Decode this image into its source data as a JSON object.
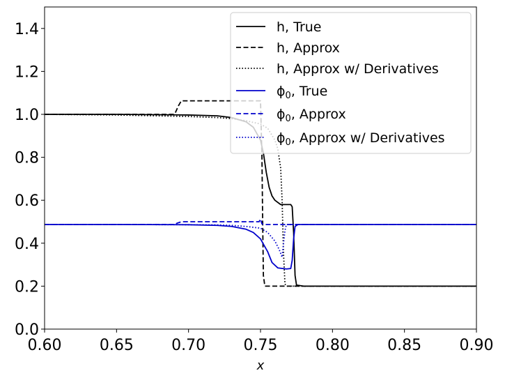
{
  "chart_data": {
    "type": "line",
    "title": "",
    "xlabel": "x",
    "ylabel": "",
    "xlim": [
      0.6,
      0.9
    ],
    "ylim": [
      0.0,
      1.5
    ],
    "xticks": [
      0.6,
      0.65,
      0.7,
      0.75,
      0.8,
      0.85,
      0.9
    ],
    "xtick_labels": [
      "0.60",
      "0.65",
      "0.70",
      "0.75",
      "0.80",
      "0.85",
      "0.90"
    ],
    "yticks": [
      0.0,
      0.2,
      0.4,
      0.6,
      0.8,
      1.0,
      1.2,
      1.4
    ],
    "ytick_labels": [
      "0.0",
      "0.2",
      "0.4",
      "0.6",
      "0.8",
      "1.0",
      "1.2",
      "1.4"
    ],
    "grid": false,
    "legend_position": "top-right",
    "series": [
      {
        "name": "h, True",
        "label_main": "h",
        "label_sub": "",
        "label_rest": ", True",
        "color": "#000000",
        "dash": "solid",
        "x": [
          0.6,
          0.65,
          0.7,
          0.72,
          0.73,
          0.74,
          0.745,
          0.75,
          0.752,
          0.754,
          0.756,
          0.758,
          0.76,
          0.764,
          0.768,
          0.771,
          0.772,
          0.773,
          0.774,
          0.775,
          0.78,
          0.85,
          0.9
        ],
        "y": [
          1.0,
          1.0,
          0.997,
          0.993,
          0.985,
          0.965,
          0.94,
          0.88,
          0.82,
          0.73,
          0.66,
          0.62,
          0.6,
          0.58,
          0.58,
          0.58,
          0.57,
          0.45,
          0.25,
          0.205,
          0.2,
          0.2,
          0.2
        ]
      },
      {
        "name": "h, Approx",
        "label_main": "h",
        "label_sub": "",
        "label_rest": ", Approx",
        "color": "#000000",
        "dash": "dashed",
        "x": [
          0.6,
          0.69,
          0.691,
          0.693,
          0.695,
          0.7,
          0.75,
          0.751,
          0.7515,
          0.752,
          0.753,
          0.8,
          0.9
        ],
        "y": [
          1.0,
          1.0,
          1.01,
          1.04,
          1.063,
          1.063,
          1.063,
          0.8,
          0.5,
          0.25,
          0.2,
          0.2,
          0.2
        ]
      },
      {
        "name": "h, Approx w/ Derivatives",
        "label_main": "h",
        "label_sub": "",
        "label_rest": ", Approx w/ Derivatives",
        "color": "#000000",
        "dash": "dotted",
        "x": [
          0.6,
          0.65,
          0.7,
          0.72,
          0.73,
          0.74,
          0.75,
          0.755,
          0.76,
          0.762,
          0.764,
          0.765,
          0.766,
          0.767,
          0.768,
          0.8,
          0.9
        ],
        "y": [
          1.0,
          0.997,
          0.99,
          0.985,
          0.98,
          0.97,
          0.955,
          0.935,
          0.88,
          0.84,
          0.75,
          0.6,
          0.35,
          0.21,
          0.2,
          0.2,
          0.2
        ]
      },
      {
        "name": "ϕ0, True",
        "label_main": "ϕ",
        "label_sub": "0",
        "label_rest": ", True",
        "color": "#0000cc",
        "dash": "solid",
        "x": [
          0.6,
          0.65,
          0.7,
          0.72,
          0.73,
          0.74,
          0.745,
          0.75,
          0.755,
          0.758,
          0.762,
          0.768,
          0.771,
          0.772,
          0.773,
          0.774,
          0.776,
          0.8,
          0.9
        ],
        "y": [
          0.487,
          0.487,
          0.486,
          0.483,
          0.478,
          0.465,
          0.45,
          0.42,
          0.36,
          0.31,
          0.285,
          0.28,
          0.282,
          0.32,
          0.42,
          0.478,
          0.487,
          0.487,
          0.487
        ]
      },
      {
        "name": "ϕ0, Approx",
        "label_main": "ϕ",
        "label_sub": "0",
        "label_rest": ", Approx",
        "color": "#0000cc",
        "dash": "dashed",
        "x": [
          0.6,
          0.69,
          0.692,
          0.695,
          0.7,
          0.749,
          0.75,
          0.751,
          0.753,
          0.8,
          0.9
        ],
        "y": [
          0.487,
          0.487,
          0.493,
          0.5,
          0.5,
          0.5,
          0.512,
          0.49,
          0.487,
          0.487,
          0.487
        ]
      },
      {
        "name": "ϕ0, Approx w/ Derivatives",
        "label_main": "ϕ",
        "label_sub": "0",
        "label_rest": ", Approx w/ Derivatives",
        "color": "#0000cc",
        "dash": "dotted",
        "x": [
          0.6,
          0.65,
          0.7,
          0.72,
          0.73,
          0.74,
          0.75,
          0.755,
          0.76,
          0.763,
          0.765,
          0.766,
          0.767,
          0.768,
          0.8,
          0.9
        ],
        "y": [
          0.487,
          0.487,
          0.486,
          0.485,
          0.483,
          0.478,
          0.47,
          0.45,
          0.41,
          0.37,
          0.335,
          0.4,
          0.46,
          0.487,
          0.487,
          0.487
        ]
      }
    ]
  }
}
